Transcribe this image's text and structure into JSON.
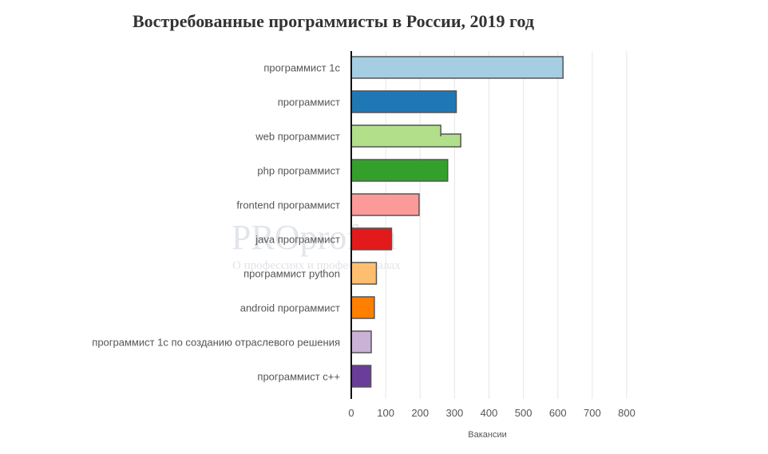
{
  "watermark": {
    "main": "PROprof.ru",
    "sub": "О профессиях и профессионалах"
  },
  "chart_data": {
    "type": "bar",
    "orientation": "horizontal",
    "title": "Востребованные программисты в России, 2019 год",
    "xlabel": "Вакансии",
    "ylabel": "",
    "xlim": [
      0,
      800
    ],
    "xticks": [
      0,
      100,
      200,
      300,
      400,
      500,
      600,
      700,
      800
    ],
    "grid": true,
    "categories": [
      "программист 1с",
      "программист",
      "web программист",
      "php программист",
      "frontend программист",
      "java программист",
      "программист python",
      "android программист",
      "программист 1с по созданию отраслевого решения",
      "программист с++"
    ],
    "values": [
      615,
      305,
      260,
      280,
      197,
      117,
      73,
      67,
      58,
      57
    ],
    "overlay_values": [
      null,
      null,
      318,
      null,
      null,
      null,
      null,
      null,
      null,
      null
    ],
    "colors": [
      "#a6cee3",
      "#1f78b4",
      "#b2df8a",
      "#33a02c",
      "#fb9a99",
      "#e31a1c",
      "#fdbf6f",
      "#ff7f00",
      "#cab2d6",
      "#6a3d9a"
    ],
    "bar_outline": "#555555",
    "gridline_color": "#e6e6e6"
  }
}
